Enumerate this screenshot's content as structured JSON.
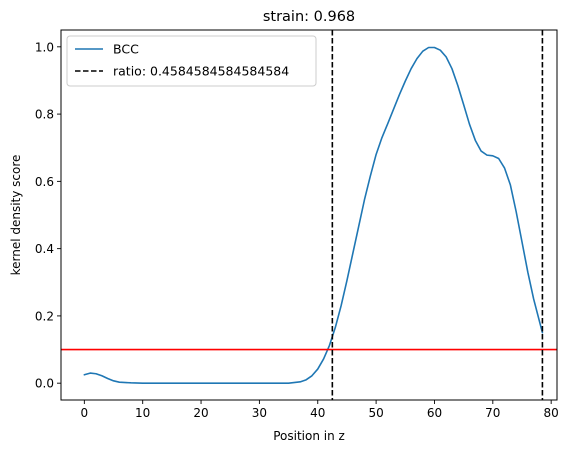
{
  "chart_data": {
    "type": "line",
    "title": "strain: 0.968",
    "xlabel": "Position in z",
    "ylabel": "kernel density score",
    "xlim": [
      -4,
      81
    ],
    "ylim": [
      -0.05,
      1.05
    ],
    "xticks": [
      0,
      10,
      20,
      30,
      40,
      50,
      60,
      70,
      80
    ],
    "yticks": [
      0.0,
      0.2,
      0.4,
      0.6,
      0.8,
      1.0
    ],
    "xtick_labels": [
      "0",
      "10",
      "20",
      "30",
      "40",
      "50",
      "60",
      "70",
      "80"
    ],
    "ytick_labels": [
      "0.0",
      "0.2",
      "0.4",
      "0.6",
      "0.8",
      "1.0"
    ],
    "grid": false,
    "legend_position": "top-left",
    "series": [
      {
        "name": "BCC",
        "color": "#1f77b4",
        "x": [
          0,
          1,
          2,
          3,
          4,
          5,
          6,
          8,
          10,
          15,
          20,
          25,
          30,
          35,
          37,
          38,
          39,
          40,
          41,
          42,
          43,
          44,
          45,
          46,
          47,
          48,
          49,
          50,
          51,
          52,
          53,
          54,
          55,
          56,
          57,
          58,
          59,
          60,
          61,
          62,
          63,
          64,
          65,
          66,
          67,
          68,
          69,
          70,
          71,
          72,
          73,
          74,
          75,
          76,
          77,
          78.5
        ],
        "y": [
          0.025,
          0.03,
          0.028,
          0.022,
          0.014,
          0.007,
          0.003,
          0.001,
          0.0,
          0.0,
          0.0,
          0.0,
          0.0,
          0.0,
          0.004,
          0.01,
          0.022,
          0.042,
          0.072,
          0.112,
          0.165,
          0.23,
          0.305,
          0.385,
          0.465,
          0.545,
          0.615,
          0.68,
          0.73,
          0.772,
          0.815,
          0.858,
          0.898,
          0.935,
          0.965,
          0.987,
          0.998,
          0.998,
          0.99,
          0.97,
          0.935,
          0.885,
          0.828,
          0.77,
          0.722,
          0.69,
          0.678,
          0.676,
          0.668,
          0.64,
          0.59,
          0.51,
          0.42,
          0.33,
          0.25,
          0.15
        ]
      }
    ],
    "vlines": [
      {
        "label": "ratio: 0.4584584584584584",
        "x": 42.5,
        "color": "#000000",
        "style": "dashed"
      },
      {
        "label": "",
        "x": 78.5,
        "color": "#000000",
        "style": "dashed"
      }
    ],
    "hlines": [
      {
        "y": 0.1,
        "color": "#ff0000"
      }
    ]
  }
}
